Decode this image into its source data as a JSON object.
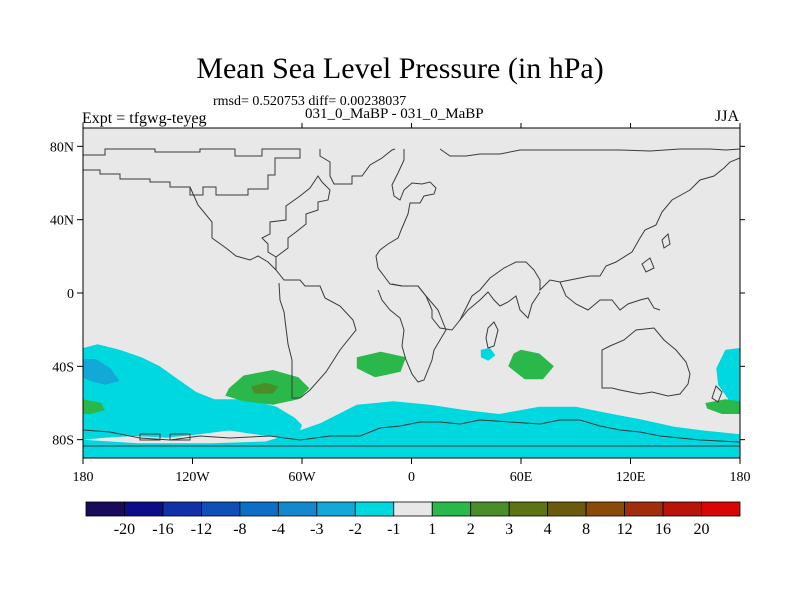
{
  "header": {
    "title": "Mean Sea Level Pressure (in hPa)",
    "stats": "rmsd= 0.520753 diff= 0.00238037",
    "expt": "Expt = tfgwg-teyeg",
    "runs": "031_0_MaBP - 031_0_MaBP",
    "season": "JJA"
  },
  "chart_data": {
    "type": "heatmap",
    "title": "Mean Sea Level Pressure (in hPa)",
    "subtitle": "031_0_MaBP - 031_0_MaBP",
    "season": "JJA",
    "xlabel": "",
    "ylabel": "",
    "x_range": [
      -180,
      180
    ],
    "y_range": [
      -90,
      90
    ],
    "x_ticks": [
      {
        "value": -180,
        "label": "180"
      },
      {
        "value": -120,
        "label": "120W"
      },
      {
        "value": -60,
        "label": "60W"
      },
      {
        "value": 0,
        "label": "0"
      },
      {
        "value": 60,
        "label": "60E"
      },
      {
        "value": 120,
        "label": "120E"
      },
      {
        "value": 180,
        "label": "180"
      }
    ],
    "y_ticks": [
      {
        "value": 80,
        "label": "80N"
      },
      {
        "value": 40,
        "label": "40N"
      },
      {
        "value": 0,
        "label": "0"
      },
      {
        "value": -40,
        "label": "40S"
      },
      {
        "value": -80,
        "label": "80S"
      }
    ],
    "background_color": "#e8e8e8",
    "colorbar": {
      "labels": [
        "-20",
        "-16",
        "-12",
        "-8",
        "-4",
        "-3",
        "-2",
        "-1",
        "1",
        "2",
        "3",
        "4",
        "8",
        "12",
        "16",
        "20"
      ],
      "colors": [
        "#1a0a5c",
        "#0d0d8c",
        "#1230a8",
        "#0e50b8",
        "#0c6ec4",
        "#1488cc",
        "#12a8d8",
        "#00d8e0",
        "#e8e8e8",
        "#2ab84a",
        "#4a8e2a",
        "#5e7216",
        "#6a5a0c",
        "#8a4a08",
        "#a02e0a",
        "#b8140a",
        "#d80606"
      ]
    },
    "regions": [
      {
        "name": "south-pacific-negative",
        "level": "-2 to -1",
        "color": "#00d8e0",
        "lonlat": [
          [
            -180,
            -30
          ],
          [
            -172,
            -28
          ],
          [
            -160,
            -31
          ],
          [
            -148,
            -35
          ],
          [
            -138,
            -40
          ],
          [
            -128,
            -47
          ],
          [
            -118,
            -54
          ],
          [
            -108,
            -58
          ],
          [
            -90,
            -58
          ],
          [
            -74,
            -62
          ],
          [
            -64,
            -68
          ],
          [
            -60,
            -72
          ],
          [
            -62,
            -78
          ],
          [
            -72,
            -79
          ],
          [
            -86,
            -77
          ],
          [
            -100,
            -75
          ],
          [
            -116,
            -77
          ],
          [
            -134,
            -79
          ],
          [
            -152,
            -78
          ],
          [
            -168,
            -79
          ],
          [
            -180,
            -80
          ]
        ]
      },
      {
        "name": "south-pacific-low",
        "level": "-3 to -2",
        "color": "#12a8d8",
        "lonlat": [
          [
            -180,
            -36
          ],
          [
            -173,
            -36
          ],
          [
            -165,
            -41
          ],
          [
            -160,
            -48
          ],
          [
            -168,
            -50
          ],
          [
            -176,
            -48
          ],
          [
            -180,
            -46
          ]
        ]
      },
      {
        "name": "antarctic-ring-negative",
        "level": "-2 to -1",
        "color": "#00d8e0",
        "lonlat": [
          [
            -70,
            -78
          ],
          [
            -50,
            -71
          ],
          [
            -30,
            -61
          ],
          [
            -10,
            -59
          ],
          [
            10,
            -61
          ],
          [
            30,
            -64
          ],
          [
            48,
            -66
          ],
          [
            70,
            -62
          ],
          [
            90,
            -62
          ],
          [
            110,
            -66
          ],
          [
            126,
            -69
          ],
          [
            144,
            -73
          ],
          [
            160,
            -75
          ],
          [
            180,
            -77
          ],
          [
            180,
            -90
          ],
          [
            -180,
            -90
          ],
          [
            -180,
            -80
          ],
          [
            -150,
            -82
          ],
          [
            -110,
            -82
          ],
          [
            -80,
            -81
          ]
        ]
      },
      {
        "name": "indian-ocean-patch",
        "level": "-2 to -1",
        "color": "#00d8e0",
        "lonlat": [
          [
            38,
            -31
          ],
          [
            43,
            -30
          ],
          [
            46,
            -34
          ],
          [
            42,
            -37
          ],
          [
            38,
            -35
          ]
        ]
      },
      {
        "name": "east-pacific-negative",
        "level": "-2 to -1",
        "color": "#00d8e0",
        "lonlat": [
          [
            172,
            -31
          ],
          [
            180,
            -30
          ],
          [
            180,
            -59
          ],
          [
            175,
            -60
          ],
          [
            168,
            -50
          ],
          [
            167,
            -41
          ]
        ]
      },
      {
        "name": "south-atlantic-positive",
        "level": "1 to 2",
        "color": "#2ab84a",
        "lonlat": [
          [
            -100,
            -52
          ],
          [
            -92,
            -45
          ],
          [
            -76,
            -42
          ],
          [
            -62,
            -46
          ],
          [
            -56,
            -52
          ],
          [
            -62,
            -58
          ],
          [
            -76,
            -61
          ],
          [
            -92,
            -59
          ],
          [
            -102,
            -56
          ]
        ]
      },
      {
        "name": "south-atlantic-core",
        "level": "2 to 3",
        "color": "#4a8e2a",
        "lonlat": [
          [
            -88,
            -51
          ],
          [
            -80,
            -49
          ],
          [
            -73,
            -51
          ],
          [
            -76,
            -55
          ],
          [
            -86,
            -55
          ]
        ]
      },
      {
        "name": "south-atlantic-mid-positive",
        "level": "1 to 2",
        "color": "#2ab84a",
        "lonlat": [
          [
            -30,
            -35
          ],
          [
            -17,
            -32
          ],
          [
            -3,
            -35
          ],
          [
            -6,
            -43
          ],
          [
            -20,
            -46
          ],
          [
            -30,
            -41
          ]
        ]
      },
      {
        "name": "indian-ocean-positive",
        "level": "1 to 2",
        "color": "#2ab84a",
        "lonlat": [
          [
            60,
            -31
          ],
          [
            70,
            -33
          ],
          [
            78,
            -40
          ],
          [
            72,
            -47
          ],
          [
            62,
            -47
          ],
          [
            53,
            -40
          ],
          [
            56,
            -33
          ]
        ]
      },
      {
        "name": "west-edge-positive",
        "level": "1 to 2",
        "color": "#2ab84a",
        "lonlat": [
          [
            -180,
            -58
          ],
          [
            -170,
            -60
          ],
          [
            -168,
            -64
          ],
          [
            -176,
            -66
          ],
          [
            -180,
            -66
          ]
        ]
      },
      {
        "name": "east-edge-positive",
        "level": "1 to 2",
        "color": "#2ab84a",
        "lonlat": [
          [
            161,
            -60
          ],
          [
            172,
            -58
          ],
          [
            180,
            -59
          ],
          [
            180,
            -66
          ],
          [
            170,
            -66
          ],
          [
            162,
            -63
          ]
        ]
      }
    ]
  }
}
